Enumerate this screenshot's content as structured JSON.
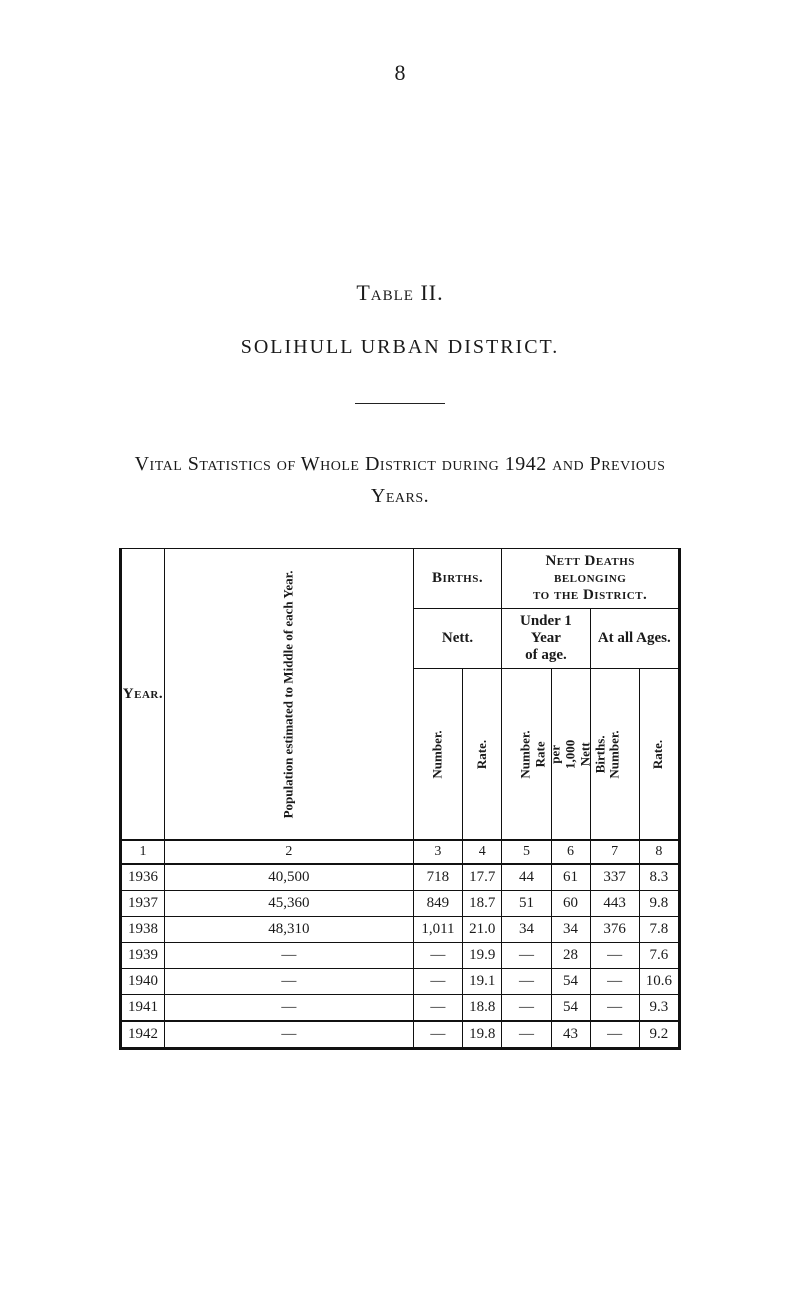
{
  "page_number": "8",
  "labels": {
    "table_label": "Table II.",
    "district_line": "SOLIHULL   URBAN   DISTRICT.",
    "vital_title_line_1": "Vital Statistics of Whole District during 1942 and Previous",
    "vital_title_line_2": "Years."
  },
  "headers": {
    "year": "Year.",
    "population": "Population estimated to Middle\nof each Year.",
    "births": "Births.",
    "nett": "Nett.",
    "deaths": "Nett Deaths belonging\nto the District.",
    "under1": "Under 1 Year\nof age.",
    "allages": "At all Ages.",
    "number": "Number.",
    "rate": "Rate.",
    "rate_per": "Rate per 1,000\nNett Births."
  },
  "column_index": [
    "1",
    "2",
    "3",
    "4",
    "5",
    "6",
    "7",
    "8"
  ],
  "rows": [
    {
      "year": "1936",
      "pop": "40,500",
      "bn": "718",
      "br": "17.7",
      "dn": "44",
      "dr": "61",
      "an": "337",
      "ar": "8.3"
    },
    {
      "year": "1937",
      "pop": "45,360",
      "bn": "849",
      "br": "18.7",
      "dn": "51",
      "dr": "60",
      "an": "443",
      "ar": "9.8"
    },
    {
      "year": "1938",
      "pop": "48,310",
      "bn": "1,011",
      "br": "21.0",
      "dn": "34",
      "dr": "34",
      "an": "376",
      "ar": "7.8"
    },
    {
      "year": "1939",
      "pop": "—",
      "bn": "—",
      "br": "19.9",
      "dn": "—",
      "dr": "28",
      "an": "—",
      "ar": "7.6"
    },
    {
      "year": "1940",
      "pop": "—",
      "bn": "—",
      "br": "19.1",
      "dn": "—",
      "dr": "54",
      "an": "—",
      "ar": "10.6"
    },
    {
      "year": "1941",
      "pop": "—",
      "bn": "—",
      "br": "18.8",
      "dn": "—",
      "dr": "54",
      "an": "—",
      "ar": "9.3"
    },
    {
      "year": "1942",
      "pop": "—",
      "bn": "—",
      "br": "19.8",
      "dn": "—",
      "dr": "43",
      "an": "—",
      "ar": "9.2"
    }
  ],
  "colors": {
    "text": "#1a1a1a",
    "rule": "#222222",
    "bg": "#ffffff"
  }
}
